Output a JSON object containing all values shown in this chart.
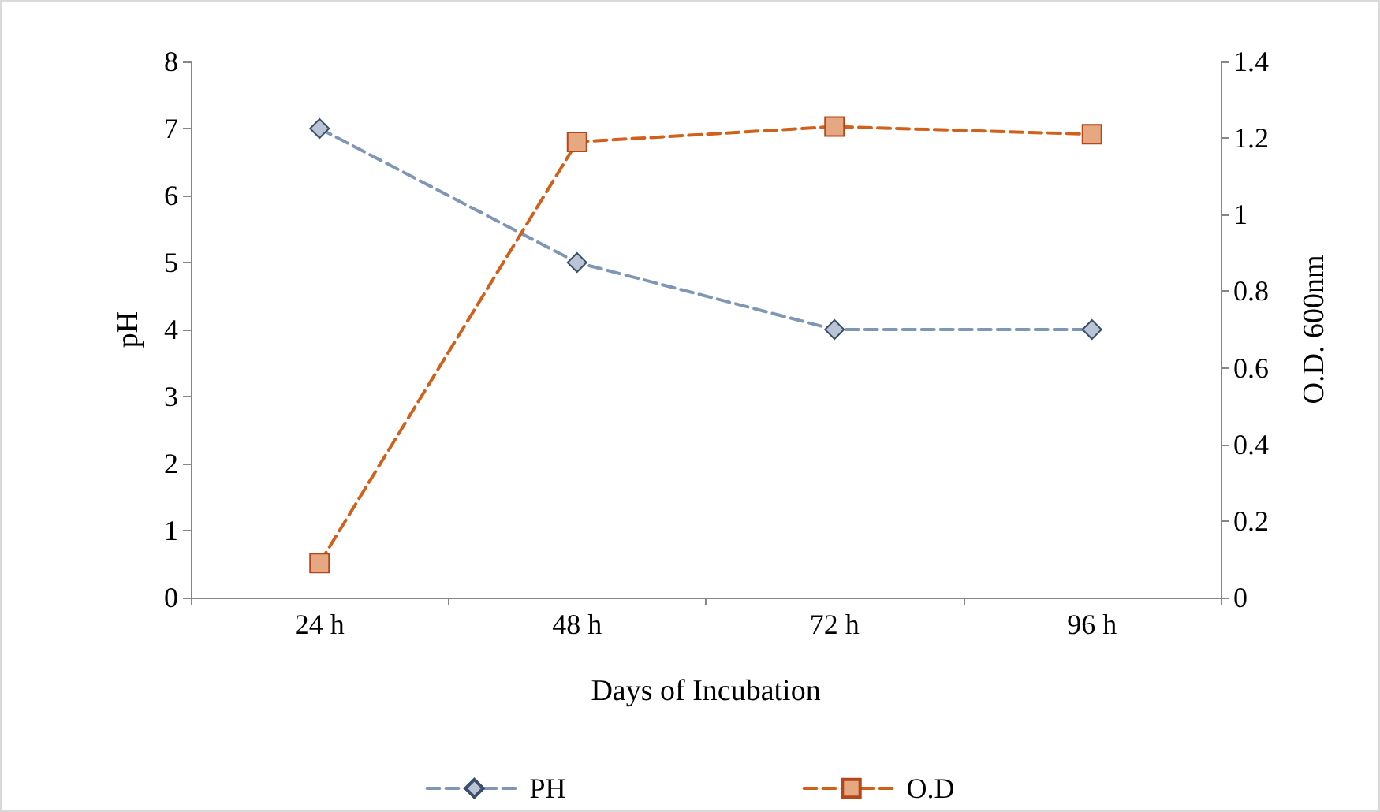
{
  "chart_data": {
    "type": "line",
    "xlabel": "Days of Incubation",
    "ylabel": "pH",
    "y2label": "O.D. 600nm",
    "categories": [
      "24 h",
      "48 h",
      "72 h",
      "96 h"
    ],
    "series": [
      {
        "name": "PH",
        "color": "#7f96b4",
        "values": [
          7,
          5,
          4,
          4
        ],
        "marker": "diamond",
        "line_style": "dashed"
      },
      {
        "name": "O.D",
        "color": "#d0601a",
        "values": [
          0.09,
          1.19,
          1.23,
          1.21
        ],
        "axis": "y2",
        "marker": "square",
        "line_style": "dashed"
      }
    ],
    "ylim": [
      0,
      8
    ],
    "yticks": [
      0,
      1,
      2,
      3,
      4,
      5,
      6,
      7,
      8
    ],
    "y2lim": [
      0,
      1.4
    ],
    "y2ticks": [
      0,
      0.2,
      0.4,
      0.6,
      0.8,
      1,
      1.2,
      1.4
    ],
    "grid": false,
    "legend": "bottom"
  }
}
